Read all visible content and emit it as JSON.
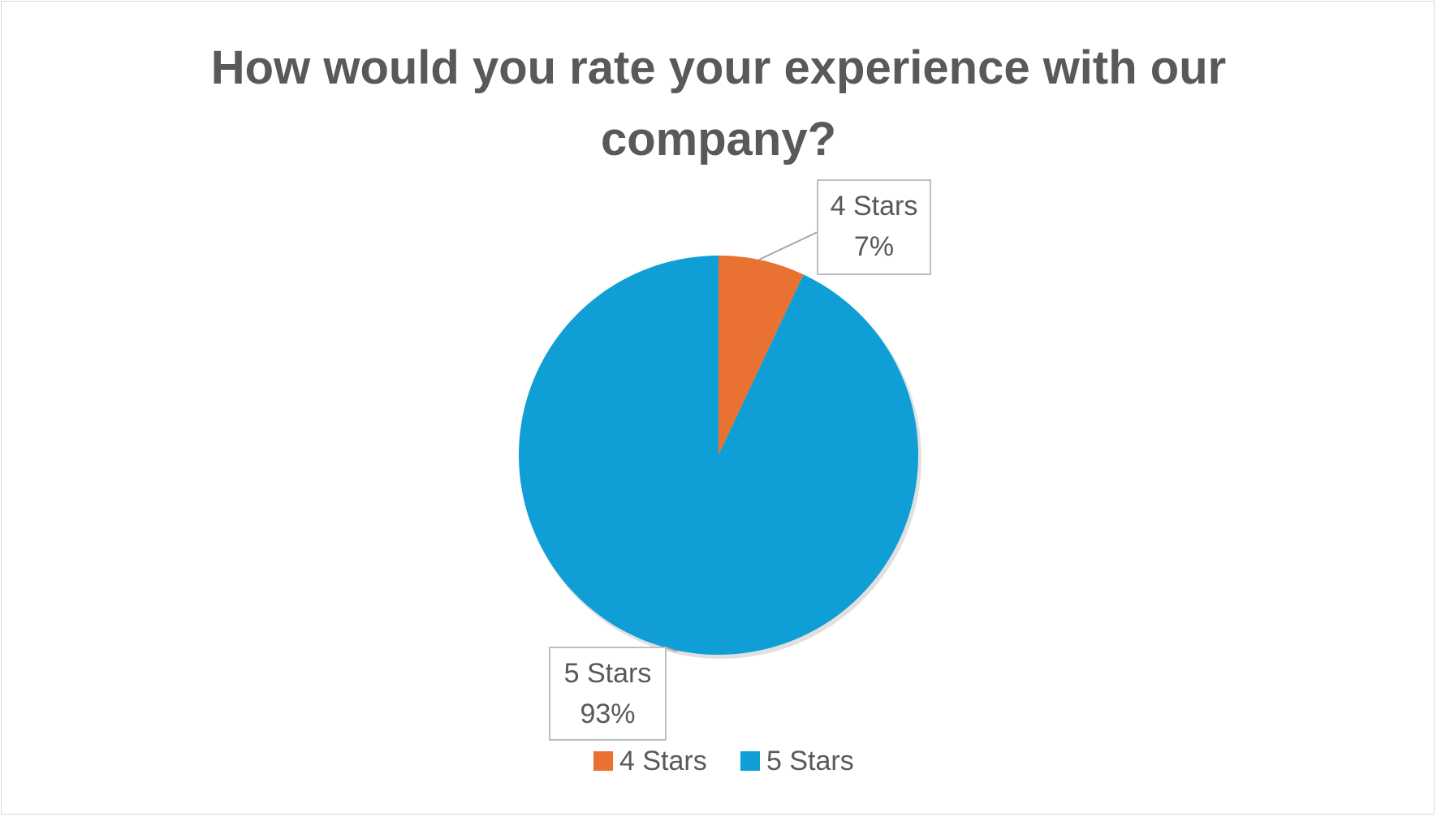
{
  "chart_data": {
    "type": "pie",
    "title": "How would you rate your experience with our company?",
    "categories": [
      "4 Stars",
      "5 Stars"
    ],
    "values": [
      7,
      93
    ],
    "value_labels": [
      "7%",
      "93%"
    ],
    "colors": [
      "#E97132",
      "#0F9ED5"
    ],
    "legend": "bottom"
  }
}
